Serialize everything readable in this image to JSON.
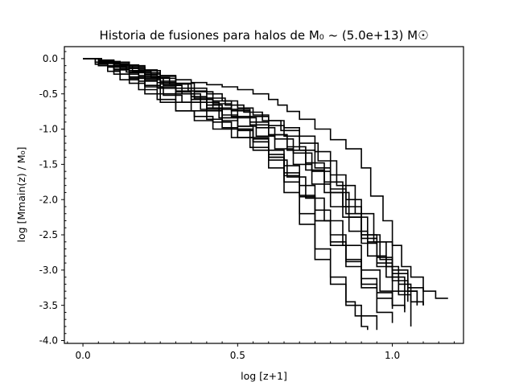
{
  "chart_data": {
    "type": "line",
    "title": "Historia de fusiones para halos de M₀ ~ (5.0e+13) M☉",
    "xlabel": "log [z+1]",
    "ylabel": "log [Mmain(z) / M₀]",
    "xlim": [
      -0.06,
      1.23
    ],
    "ylim": [
      -4.04,
      0.17
    ],
    "x_ticks": [
      {
        "value": 0.0,
        "label": "0.0"
      },
      {
        "value": 0.5,
        "label": "0.5"
      },
      {
        "value": 1.0,
        "label": "1.0"
      }
    ],
    "y_ticks": [
      {
        "value": 0.0,
        "label": "0.0"
      },
      {
        "value": -0.5,
        "label": "-0.5"
      },
      {
        "value": -1.0,
        "label": "-1.0"
      },
      {
        "value": -1.5,
        "label": "-1.5"
      },
      {
        "value": -2.0,
        "label": "-2.0"
      },
      {
        "value": -2.5,
        "label": "-2.5"
      },
      {
        "value": -3.0,
        "label": "-3.0"
      },
      {
        "value": -3.5,
        "label": "-3.5"
      },
      {
        "value": -4.0,
        "label": "-4.0"
      }
    ],
    "grid": false,
    "line_style": "steps-post",
    "line_color": "#000000",
    "series": [
      {
        "x": [
          0.0,
          0.05,
          0.1,
          0.15,
          0.2,
          0.25,
          0.3,
          0.35,
          0.4,
          0.45,
          0.5,
          0.55,
          0.6,
          0.63,
          0.66,
          0.7,
          0.75,
          0.8,
          0.85,
          0.9,
          0.93,
          0.97,
          1.0,
          1.03,
          1.06,
          1.1,
          1.14,
          1.18
        ],
        "y": [
          0.0,
          -0.02,
          -0.05,
          -0.1,
          -0.17,
          -0.24,
          -0.3,
          -0.34,
          -0.37,
          -0.4,
          -0.44,
          -0.5,
          -0.58,
          -0.66,
          -0.75,
          -0.86,
          -1.0,
          -1.15,
          -1.28,
          -1.55,
          -1.95,
          -2.3,
          -2.65,
          -2.95,
          -3.1,
          -3.3,
          -3.4,
          -3.4
        ]
      },
      {
        "x": [
          0.0,
          0.05,
          0.1,
          0.15,
          0.2,
          0.25,
          0.3,
          0.35,
          0.4,
          0.45,
          0.5,
          0.55,
          0.6,
          0.65,
          0.7,
          0.75,
          0.8,
          0.85,
          0.9,
          0.95,
          1.0,
          1.05,
          1.1
        ],
        "y": [
          0.0,
          -0.03,
          -0.07,
          -0.12,
          -0.2,
          -0.28,
          -0.36,
          -0.42,
          -0.5,
          -0.6,
          -0.7,
          -0.8,
          -0.88,
          -0.98,
          -1.1,
          -1.32,
          -1.65,
          -2.0,
          -2.5,
          -2.82,
          -3.05,
          -3.25,
          -3.5
        ]
      },
      {
        "x": [
          0.0,
          0.04,
          0.08,
          0.12,
          0.18,
          0.24,
          0.3,
          0.36,
          0.42,
          0.48,
          0.54,
          0.6,
          0.65,
          0.7,
          0.75,
          0.8,
          0.85,
          0.9,
          0.95,
          1.0,
          1.05
        ],
        "y": [
          0.0,
          -0.05,
          -0.12,
          -0.22,
          -0.32,
          -0.42,
          -0.5,
          -0.56,
          -0.64,
          -0.72,
          -0.82,
          -0.95,
          -1.1,
          -1.3,
          -1.55,
          -1.85,
          -2.2,
          -2.55,
          -2.9,
          -3.15,
          -3.45
        ]
      },
      {
        "x": [
          0.0,
          0.05,
          0.1,
          0.16,
          0.22,
          0.28,
          0.34,
          0.4,
          0.46,
          0.52,
          0.58,
          0.64,
          0.7,
          0.76,
          0.82,
          0.88,
          0.94,
          1.0,
          1.05,
          1.08
        ],
        "y": [
          0.0,
          -0.04,
          -0.1,
          -0.18,
          -0.27,
          -0.36,
          -0.46,
          -0.56,
          -0.66,
          -0.76,
          -0.88,
          -1.02,
          -1.2,
          -1.45,
          -1.8,
          -2.2,
          -2.6,
          -3.0,
          -3.3,
          -3.5
        ]
      },
      {
        "x": [
          0.0,
          0.06,
          0.12,
          0.18,
          0.24,
          0.3,
          0.36,
          0.42,
          0.48,
          0.54,
          0.6,
          0.66,
          0.72,
          0.78,
          0.84,
          0.9,
          0.96,
          1.0,
          1.04,
          1.08
        ],
        "y": [
          0.0,
          -0.06,
          -0.14,
          -0.24,
          -0.34,
          -0.46,
          -0.58,
          -0.7,
          -0.82,
          -0.94,
          -1.08,
          -1.25,
          -1.48,
          -1.75,
          -2.1,
          -2.5,
          -2.85,
          -3.1,
          -3.3,
          -3.5
        ]
      },
      {
        "x": [
          0.0,
          0.04,
          0.08,
          0.14,
          0.2,
          0.26,
          0.32,
          0.38,
          0.44,
          0.5,
          0.56,
          0.62,
          0.68,
          0.74,
          0.8,
          0.86,
          0.92,
          0.98,
          1.02,
          1.06,
          1.1
        ],
        "y": [
          0.0,
          -0.05,
          -0.11,
          -0.19,
          -0.28,
          -0.38,
          -0.5,
          -0.62,
          -0.72,
          -0.84,
          -0.98,
          -1.14,
          -1.34,
          -1.6,
          -1.9,
          -2.25,
          -2.6,
          -2.95,
          -3.2,
          -3.45,
          -3.5
        ]
      },
      {
        "x": [
          0.0,
          0.05,
          0.1,
          0.15,
          0.2,
          0.26,
          0.32,
          0.38,
          0.44,
          0.5,
          0.56,
          0.62,
          0.68,
          0.74,
          0.8,
          0.86,
          0.92,
          0.98,
          1.02,
          1.06
        ],
        "y": [
          0.0,
          -0.07,
          -0.16,
          -0.28,
          -0.4,
          -0.52,
          -0.62,
          -0.72,
          -0.84,
          -0.96,
          -1.1,
          -1.28,
          -1.5,
          -1.78,
          -2.1,
          -2.45,
          -2.8,
          -3.1,
          -3.35,
          -3.8
        ]
      },
      {
        "x": [
          0.0,
          0.05,
          0.1,
          0.15,
          0.2,
          0.25,
          0.3,
          0.36,
          0.42,
          0.48,
          0.54,
          0.6,
          0.65,
          0.7,
          0.75,
          0.8,
          0.85,
          0.9,
          0.95,
          1.0
        ],
        "y": [
          0.0,
          -0.1,
          -0.22,
          -0.35,
          -0.5,
          -0.62,
          -0.74,
          -0.82,
          -0.9,
          -1.0,
          -1.12,
          -1.3,
          -1.52,
          -1.8,
          -2.15,
          -2.5,
          -2.85,
          -3.25,
          -3.6,
          -3.75
        ]
      },
      {
        "x": [
          0.0,
          0.05,
          0.1,
          0.15,
          0.2,
          0.25,
          0.3,
          0.35,
          0.4,
          0.45,
          0.5,
          0.55,
          0.6,
          0.65,
          0.7,
          0.75,
          0.8,
          0.85,
          0.88,
          0.9,
          0.92
        ],
        "y": [
          0.0,
          -0.05,
          -0.12,
          -0.2,
          -0.3,
          -0.4,
          -0.5,
          -0.62,
          -0.74,
          -0.88,
          -1.02,
          -1.18,
          -1.4,
          -1.75,
          -2.2,
          -2.7,
          -3.1,
          -3.45,
          -3.65,
          -3.8,
          -3.85
        ]
      },
      {
        "x": [
          0.0,
          0.04,
          0.08,
          0.12,
          0.18,
          0.24,
          0.3,
          0.36,
          0.42,
          0.48,
          0.54,
          0.6,
          0.66,
          0.72,
          0.78,
          0.84,
          0.9,
          0.96,
          1.0
        ],
        "y": [
          0.0,
          -0.08,
          -0.18,
          -0.3,
          -0.44,
          -0.58,
          -0.74,
          -0.88,
          -1.0,
          -1.12,
          -1.26,
          -1.44,
          -1.68,
          -1.98,
          -2.3,
          -2.65,
          -3.0,
          -3.3,
          -3.5
        ]
      },
      {
        "x": [
          0.0,
          0.06,
          0.12,
          0.18,
          0.24,
          0.3,
          0.36,
          0.42,
          0.48,
          0.54,
          0.6,
          0.66,
          0.72,
          0.78,
          0.84,
          0.9,
          0.95,
          1.0,
          1.04
        ],
        "y": [
          0.0,
          -0.04,
          -0.09,
          -0.16,
          -0.25,
          -0.35,
          -0.47,
          -0.6,
          -0.74,
          -0.9,
          -1.08,
          -1.3,
          -1.58,
          -1.9,
          -2.25,
          -2.62,
          -2.95,
          -3.3,
          -3.55
        ]
      },
      {
        "x": [
          0.0,
          0.05,
          0.1,
          0.15,
          0.2,
          0.25,
          0.3,
          0.35,
          0.4,
          0.45,
          0.5,
          0.55,
          0.6,
          0.65,
          0.7,
          0.75,
          0.8,
          0.85,
          0.9,
          0.95
        ],
        "y": [
          0.0,
          -0.06,
          -0.15,
          -0.26,
          -0.38,
          -0.5,
          -0.62,
          -0.74,
          -0.86,
          -0.98,
          -1.12,
          -1.3,
          -1.55,
          -1.9,
          -2.35,
          -2.85,
          -3.2,
          -3.5,
          -3.65,
          -3.85
        ]
      },
      {
        "x": [
          0.0,
          0.05,
          0.1,
          0.15,
          0.2,
          0.25,
          0.3,
          0.35,
          0.4,
          0.45,
          0.5,
          0.55,
          0.6,
          0.65,
          0.7,
          0.75,
          0.8,
          0.85,
          0.9,
          0.95,
          1.0
        ],
        "y": [
          0.0,
          -0.03,
          -0.08,
          -0.14,
          -0.22,
          -0.32,
          -0.42,
          -0.54,
          -0.66,
          -0.8,
          -0.96,
          -1.14,
          -1.36,
          -1.62,
          -1.94,
          -2.3,
          -2.65,
          -2.95,
          -3.2,
          -3.4,
          -3.55
        ]
      },
      {
        "x": [
          0.0,
          0.05,
          0.1,
          0.15,
          0.2,
          0.25,
          0.3,
          0.35,
          0.4,
          0.45,
          0.5,
          0.55,
          0.6,
          0.65,
          0.7,
          0.75,
          0.8,
          0.85,
          0.9,
          0.95,
          1.0,
          1.04
        ],
        "y": [
          0.0,
          -0.04,
          -0.1,
          -0.17,
          -0.26,
          -0.36,
          -0.47,
          -0.58,
          -0.7,
          -0.84,
          -1.0,
          -1.18,
          -1.4,
          -1.66,
          -1.96,
          -2.3,
          -2.6,
          -2.88,
          -3.12,
          -3.32,
          -3.5,
          -3.6
        ]
      }
    ]
  }
}
